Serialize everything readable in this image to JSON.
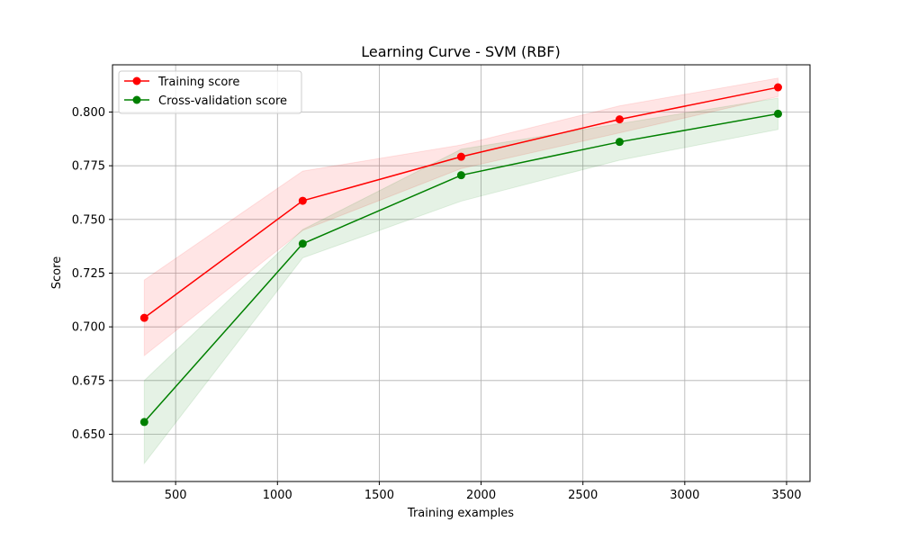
{
  "chart_data": {
    "type": "line",
    "title": "Learning Curve - SVM (RBF)",
    "xlabel": "Training examples",
    "ylabel": "Score",
    "xlim": [
      190,
      3615
    ],
    "ylim": [
      0.628,
      0.822
    ],
    "xticks": [
      500,
      1000,
      1500,
      2000,
      2500,
      3000,
      3500
    ],
    "xtick_labels": [
      "500",
      "1000",
      "1500",
      "2000",
      "2500",
      "3000",
      "3500"
    ],
    "yticks": [
      0.65,
      0.675,
      0.7,
      0.725,
      0.75,
      0.775,
      0.8
    ],
    "ytick_labels": [
      "0.650",
      "0.675",
      "0.700",
      "0.725",
      "0.750",
      "0.775",
      "0.800"
    ],
    "grid": true,
    "legend_position": "top-left",
    "x": [
      346,
      1124,
      1902,
      2680,
      3458
    ],
    "series": [
      {
        "name": "Training score",
        "color": "#ff0000",
        "marker": "circle",
        "values": [
          0.7042,
          0.7587,
          0.7792,
          0.7966,
          0.8115
        ],
        "band_lower": [
          0.6866,
          0.7449,
          0.7737,
          0.7903,
          0.8072
        ],
        "band_upper": [
          0.7218,
          0.7725,
          0.7847,
          0.8029,
          0.8158
        ]
      },
      {
        "name": "Cross-validation score",
        "color": "#008000",
        "marker": "circle",
        "values": [
          0.6557,
          0.7387,
          0.7706,
          0.7861,
          0.7992
        ],
        "band_lower": [
          0.6364,
          0.7321,
          0.7585,
          0.7776,
          0.7919
        ],
        "band_upper": [
          0.675,
          0.7453,
          0.7827,
          0.7946,
          0.8065
        ]
      }
    ]
  }
}
